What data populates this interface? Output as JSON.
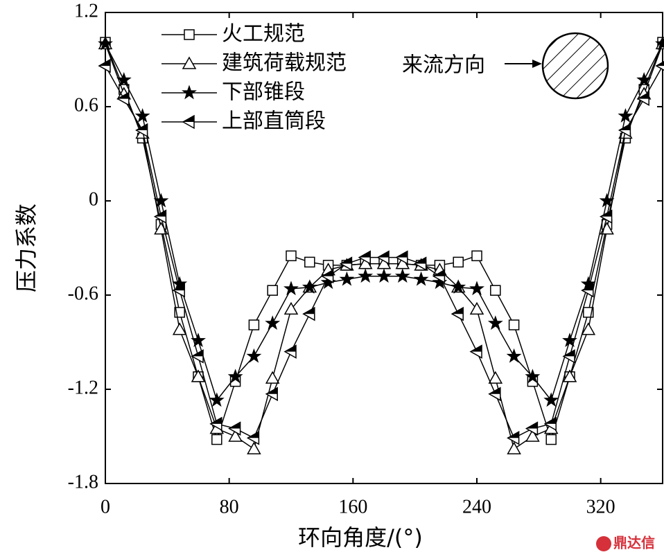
{
  "chart_data": {
    "type": "line",
    "x": [
      0,
      12,
      24,
      36,
      48,
      60,
      72,
      84,
      96,
      108,
      120,
      132,
      144,
      156,
      168,
      180,
      192,
      204,
      216,
      228,
      240,
      252,
      264,
      276,
      288,
      300,
      312,
      324,
      336,
      348,
      360
    ],
    "series": [
      {
        "name": "火工规范",
        "color": "#000000",
        "marker": "square",
        "values": [
          1.01,
          0.71,
          0.4,
          -0.15,
          -0.71,
          -1.12,
          -1.52,
          -1.15,
          -0.79,
          -0.57,
          -0.35,
          -0.39,
          -0.41,
          -0.41,
          -0.4,
          -0.4,
          -0.4,
          -0.41,
          -0.41,
          -0.39,
          -0.35,
          -0.57,
          -0.79,
          -1.15,
          -1.52,
          -1.12,
          -0.71,
          -0.15,
          0.4,
          0.71,
          1.01
        ]
      },
      {
        "name": "建筑荷载规范",
        "color": "#000000",
        "marker": "triangle",
        "values": [
          1.0,
          0.68,
          0.43,
          -0.18,
          -0.82,
          -1.12,
          -1.45,
          -1.5,
          -1.58,
          -1.13,
          -0.69,
          -0.55,
          -0.44,
          -0.41,
          -0.4,
          -0.4,
          -0.4,
          -0.41,
          -0.44,
          -0.55,
          -0.69,
          -1.13,
          -1.58,
          -1.5,
          -1.45,
          -1.12,
          -0.82,
          -0.18,
          0.43,
          0.68,
          1.0
        ]
      },
      {
        "name": "下部锥段",
        "color": "#000000",
        "marker": "star",
        "values": [
          1.0,
          0.77,
          0.54,
          0.0,
          -0.53,
          -0.89,
          -1.27,
          -1.12,
          -0.99,
          -0.78,
          -0.56,
          -0.55,
          -0.52,
          -0.5,
          -0.48,
          -0.48,
          -0.48,
          -0.5,
          -0.52,
          -0.55,
          -0.56,
          -0.78,
          -0.99,
          -1.12,
          -1.27,
          -0.89,
          -0.53,
          0.0,
          0.54,
          0.77,
          1.0
        ]
      },
      {
        "name": "上部直筒段",
        "color": "#000000",
        "marker": "triangle-left",
        "values": [
          0.86,
          0.65,
          0.45,
          -0.1,
          -0.57,
          -0.99,
          -1.42,
          -1.45,
          -1.51,
          -1.23,
          -0.96,
          -0.72,
          -0.48,
          -0.4,
          -0.36,
          -0.36,
          -0.36,
          -0.4,
          -0.48,
          -0.72,
          -0.96,
          -1.23,
          -1.51,
          -1.45,
          -1.42,
          -0.99,
          -0.57,
          -0.1,
          0.45,
          0.65,
          0.86
        ]
      }
    ],
    "xlim": [
      0,
      360
    ],
    "xticks": [
      0,
      80,
      160,
      240,
      320
    ],
    "ylim": [
      -1.8,
      1.2
    ],
    "yticks": [
      -1.8,
      -1.2,
      -0.6,
      0,
      0.6,
      1.2
    ],
    "xlabel": "环向角度/(°)",
    "ylabel": "压力系数",
    "annotation": "来流方向",
    "watermark": "鼎达信",
    "legend": "upper-left"
  }
}
